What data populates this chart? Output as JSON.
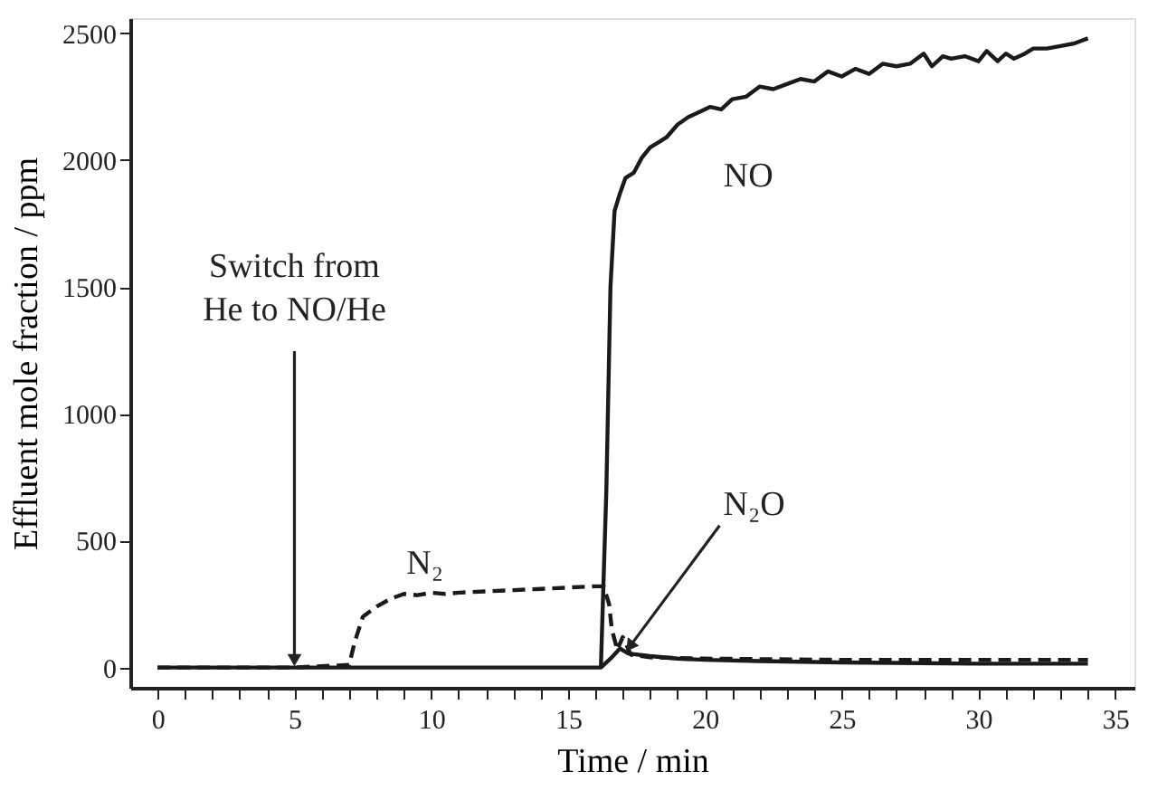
{
  "chart_data": {
    "type": "line",
    "xlabel": "Time / min",
    "ylabel": "Effluent mole fraction / ppm",
    "series": [
      {
        "color": "#1a1a1a",
        "line_style": "solid",
        "x": [
          0,
          5,
          10,
          16.2,
          16.4,
          16.55,
          16.7,
          16.9,
          17.1,
          17.4,
          17.7,
          18.0,
          18.3,
          18.6,
          19.0,
          19.4,
          19.8,
          20.2,
          20.6,
          21.0,
          21.5,
          22.0,
          22.5,
          23.0,
          23.5,
          24.0,
          24.5,
          25.0,
          25.5,
          26.0,
          26.5,
          27.0,
          27.5,
          28.0,
          28.3,
          28.7,
          29.0,
          29.5,
          30.0,
          30.3,
          30.7,
          31.0,
          31.3,
          31.7,
          32.0,
          32.5,
          33.0,
          33.5,
          34.0
        ],
        "values": [
          0,
          0,
          0,
          0,
          700,
          1500,
          1800,
          1870,
          1930,
          1950,
          2010,
          2050,
          2070,
          2090,
          2140,
          2170,
          2190,
          2210,
          2200,
          2240,
          2250,
          2290,
          2280,
          2300,
          2320,
          2310,
          2350,
          2330,
          2360,
          2340,
          2380,
          2370,
          2380,
          2420,
          2370,
          2410,
          2400,
          2410,
          2390,
          2430,
          2390,
          2420,
          2400,
          2420,
          2440,
          2440,
          2450,
          2460,
          2480
        ]
      },
      {
        "color": "#1a1a1a",
        "line_style": "dashed",
        "x": [
          0,
          5,
          7.0,
          7.2,
          7.5,
          8.0,
          8.5,
          9.0,
          9.5,
          10.0,
          10.5,
          11.0,
          12.0,
          13.0,
          14.0,
          15.0,
          16.0,
          16.3,
          16.5,
          16.6,
          16.8,
          17.0,
          17.3,
          18.0,
          20.0,
          25.0,
          30.0,
          34.0
        ],
        "values": [
          0,
          0,
          10,
          100,
          200,
          240,
          270,
          290,
          285,
          295,
          290,
          295,
          300,
          305,
          310,
          315,
          320,
          320,
          250,
          150,
          70,
          120,
          50,
          40,
          35,
          30,
          30,
          30
        ]
      },
      {
        "color": "#1a1a1a",
        "line_style": "solid",
        "x": [
          16.2,
          16.6,
          16.9,
          17.2,
          18.0,
          19.0,
          20.0,
          22.0,
          25.0,
          30.0,
          34.0
        ],
        "values": [
          0,
          40,
          75,
          55,
          45,
          35,
          30,
          25,
          20,
          15,
          15
        ]
      }
    ],
    "annotations": [
      {
        "text": "Switch from\nHe to NO/He",
        "x": 5,
        "y": 0
      },
      {
        "text": "NO",
        "x": 20,
        "y": 2210
      },
      {
        "text": "N₂",
        "x": 9.5,
        "y": 285
      },
      {
        "text": "N₂O",
        "x": 17.1,
        "y": 60
      }
    ],
    "xlim": [
      -1,
      35.7
    ],
    "ylim": [
      -80,
      2560
    ],
    "xticks": [
      0,
      {
        "value": 1,
        "label": null
      },
      {
        "value": 2,
        "label": null
      },
      {
        "value": 3,
        "label": null
      },
      {
        "value": 4,
        "label": null
      },
      5,
      {
        "value": 6,
        "label": null
      },
      {
        "value": 7,
        "label": null
      },
      {
        "value": 8,
        "label": null
      },
      {
        "value": 9,
        "label": null
      },
      10,
      {
        "value": 11,
        "label": null
      },
      {
        "value": 12,
        "label": null
      },
      {
        "value": 13,
        "label": null
      },
      {
        "value": 14,
        "label": null
      },
      15,
      {
        "value": 16,
        "label": null
      },
      {
        "value": 17,
        "label": null
      },
      {
        "value": 18,
        "label": null
      },
      {
        "value": 19,
        "label": null
      },
      20,
      {
        "value": 21,
        "label": null
      },
      {
        "value": 22,
        "label": null
      },
      {
        "value": 23,
        "label": null
      },
      {
        "value": 24,
        "label": null
      },
      25,
      {
        "value": 26,
        "label": null
      },
      {
        "value": 27,
        "label": null
      },
      {
        "value": 28,
        "label": null
      },
      {
        "value": 29,
        "label": null
      },
      30,
      {
        "value": 31,
        "label": null
      },
      {
        "value": 32,
        "label": null
      },
      {
        "value": 33,
        "label": null
      },
      {
        "value": 34,
        "label": null
      },
      35
    ],
    "yticks": [
      0,
      500,
      1000,
      1500,
      2000,
      2500
    ],
    "grid": false,
    "marker": "none"
  }
}
